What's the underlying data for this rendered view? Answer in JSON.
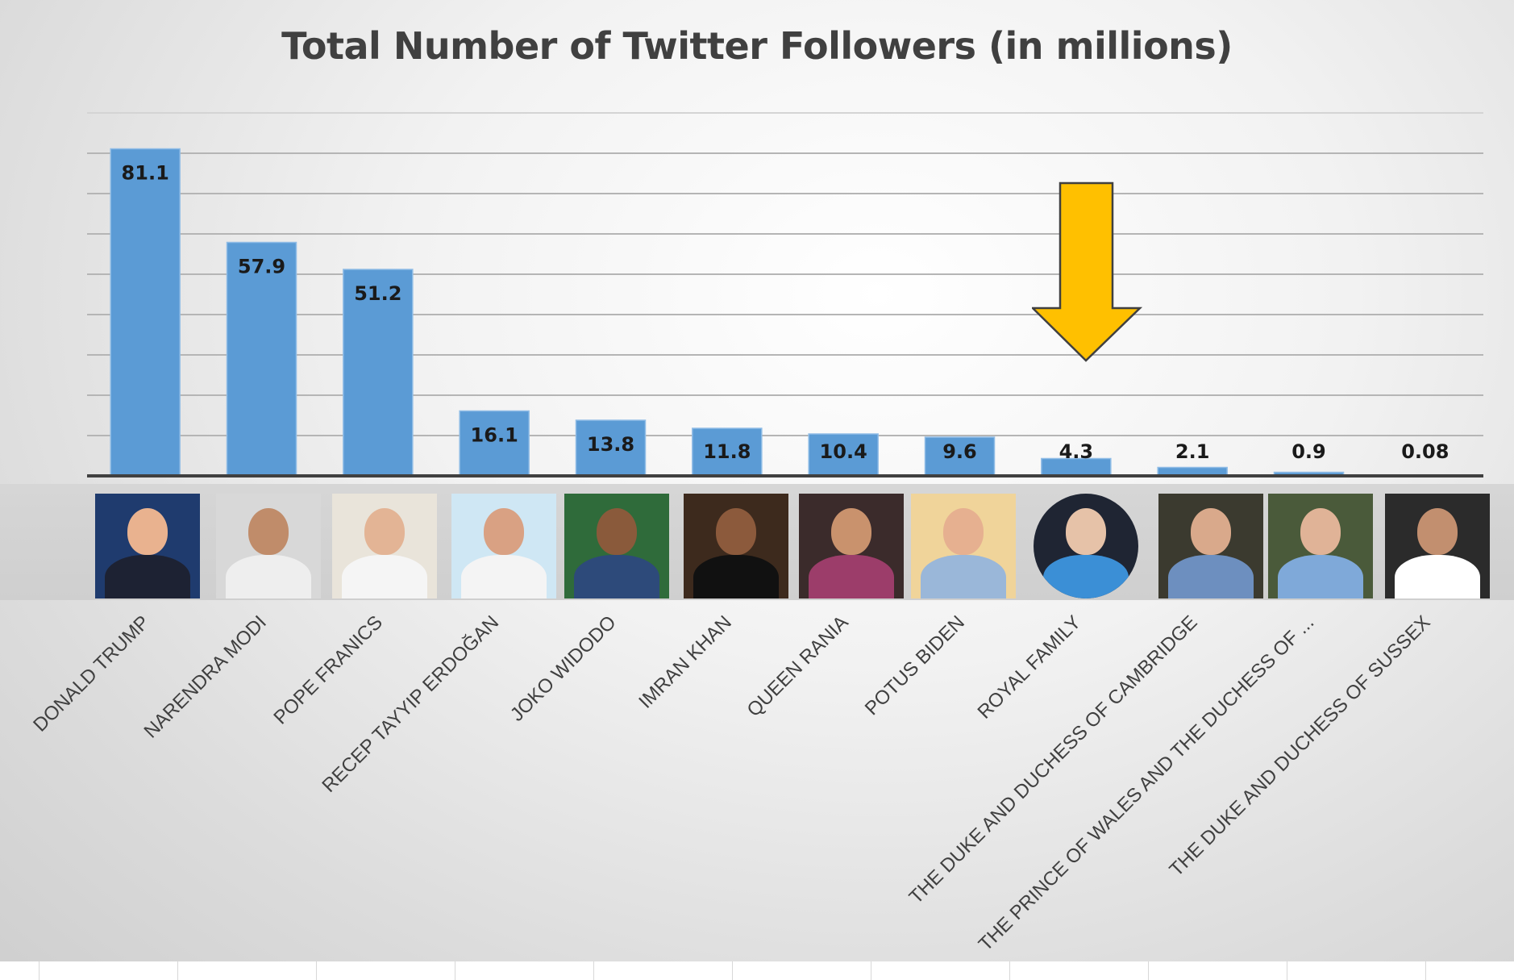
{
  "chart_data": {
    "type": "bar",
    "title": "Total Number of Twitter Followers (in millions)",
    "xlabel": "",
    "ylabel": "",
    "ylim": [
      0,
      90
    ],
    "grid": true,
    "categories": [
      "DONALD TRUMP",
      "NARENDRA MODI",
      "POPE FRANICS",
      "RECEP TAYYIP ERDOĞAN",
      "JOKO WIDODO",
      "IMRAN KHAN",
      "QUEEN RANIA",
      "POTUS BIDEN",
      "ROYAL FAMILY",
      "THE DUKE AND DUCHESS OF CAMBRIDGE",
      "THE PRINCE OF WALES AND THE DUCHESS OF ...",
      "THE DUKE AND DUCHESS OF SUSSEX"
    ],
    "values": [
      81.1,
      57.9,
      51.2,
      16.1,
      13.8,
      11.8,
      10.4,
      9.6,
      4.3,
      2.1,
      0.9,
      0.08
    ],
    "data_labels": [
      "81.1",
      "57.9",
      "51.2",
      "16.1",
      "13.8",
      "11.8",
      "10.4",
      "9.6",
      "4.3",
      "2.1",
      "0.9",
      "0.08"
    ],
    "bar_color": "#5b9bd5",
    "annotation": {
      "type": "arrow",
      "color": "#ffc000",
      "points_to": "ROYAL FAMILY"
    }
  },
  "photos": [
    "person-photo",
    "person-photo",
    "person-photo",
    "person-photo",
    "person-photo",
    "person-photo",
    "person-photo",
    "person-photo",
    "person-photo",
    "person-photo",
    "person-photo",
    "person-photo"
  ]
}
